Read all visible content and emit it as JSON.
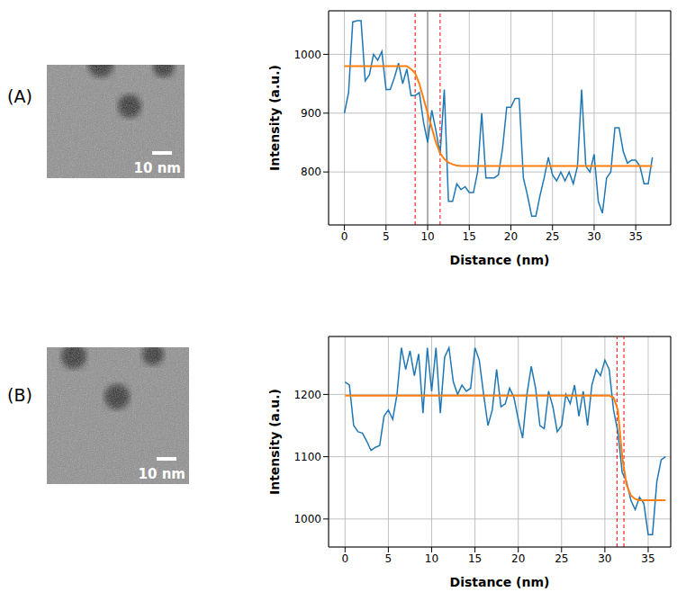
{
  "chart_data": [
    {
      "type": "line",
      "label": "(A)",
      "scale_bar": "10 nm",
      "xlabel": "Distance (nm)",
      "ylabel": "Intensity (a.u.)",
      "xlim": [
        -1.9,
        39.2
      ],
      "xticks": [
        0,
        5,
        10,
        15,
        20,
        25,
        30,
        35
      ],
      "ylim": [
        710,
        1074
      ],
      "yticks": [
        800,
        900,
        1000
      ],
      "grid": true,
      "x": [
        0,
        0.5,
        1,
        1.5,
        2,
        2.5,
        3,
        3.5,
        4,
        4.5,
        5,
        5.5,
        6,
        6.5,
        7,
        7.5,
        8,
        8.5,
        9,
        9.5,
        10,
        10.5,
        11,
        11.5,
        12,
        12.5,
        13,
        13.5,
        14,
        14.5,
        15,
        15.5,
        16,
        16.5,
        17,
        17.5,
        18,
        18.5,
        19,
        19.5,
        20,
        20.5,
        21,
        21.5,
        22,
        22.5,
        23,
        23.5,
        24,
        24.5,
        25,
        25.5,
        26,
        26.5,
        27,
        27.5,
        28,
        28.5,
        29,
        29.5,
        30,
        30.5,
        31,
        31.5,
        32,
        32.5,
        33,
        33.5,
        34,
        34.5,
        35,
        35.5,
        36,
        36.5,
        37
      ],
      "series": [
        {
          "color": "#1f77b4",
          "values": [
            900,
            935,
            1055,
            1057,
            1057,
            955,
            965,
            1000,
            990,
            1005,
            940,
            940,
            960,
            985,
            950,
            975,
            930,
            930,
            935,
            885,
            850,
            905,
            870,
            830,
            940,
            750,
            750,
            780,
            770,
            775,
            765,
            765,
            800,
            900,
            790,
            790,
            790,
            795,
            840,
            910,
            910,
            925,
            925,
            790,
            760,
            725,
            725,
            760,
            790,
            825,
            795,
            785,
            800,
            785,
            800,
            780,
            810,
            940,
            810,
            800,
            830,
            750,
            730,
            790,
            800,
            875,
            875,
            835,
            815,
            820,
            820,
            810,
            780,
            780,
            825
          ]
        },
        {
          "color": "#ff7f0e",
          "values": [
            980,
            980,
            980,
            980,
            980,
            980,
            980,
            980,
            980,
            980,
            980,
            980,
            980,
            980,
            980,
            980,
            975,
            968,
            950,
            925,
            900,
            875,
            850,
            832,
            822,
            816,
            813,
            811,
            810,
            810,
            810,
            810,
            810,
            810,
            810,
            810,
            810,
            810,
            810,
            810,
            810,
            810,
            810,
            810,
            810,
            810,
            810,
            810,
            810,
            810,
            810,
            810,
            810,
            810,
            810,
            810,
            810,
            810,
            810,
            810,
            810,
            810,
            810,
            810,
            810,
            810,
            810,
            810,
            810,
            810,
            810,
            810,
            810,
            810,
            810
          ]
        }
      ],
      "vlines": [
        {
          "x": 8.5,
          "color": "red",
          "line_style": "dashed"
        },
        {
          "x": 10.0,
          "color": "#808080",
          "line_style": "solid"
        },
        {
          "x": 11.5,
          "color": "red",
          "line_style": "dashed"
        }
      ]
    },
    {
      "type": "line",
      "label": "(B)",
      "scale_bar": "10 nm",
      "xlabel": "Distance (nm)",
      "ylabel": "Intensity (a.u.)",
      "xlim": [
        -1.9,
        37.6
      ],
      "xticks": [
        0,
        5,
        10,
        15,
        20,
        25,
        30,
        35
      ],
      "ylim": [
        955,
        1293
      ],
      "yticks": [
        1000,
        1100,
        1200
      ],
      "grid": true,
      "x": [
        0,
        0.5,
        1,
        1.5,
        2,
        2.5,
        3,
        3.5,
        4,
        4.5,
        5,
        5.5,
        6,
        6.5,
        7,
        7.5,
        8,
        8.5,
        9,
        9.5,
        10,
        10.5,
        11,
        11.5,
        12,
        12.5,
        13,
        13.5,
        14,
        14.5,
        15,
        15.5,
        16,
        16.5,
        17,
        17.5,
        18,
        18.5,
        19,
        19.5,
        20,
        20.5,
        21,
        21.5,
        22,
        22.5,
        23,
        23.5,
        24,
        24.5,
        25,
        25.5,
        26,
        26.5,
        27,
        27.5,
        28,
        28.5,
        29,
        29.5,
        30,
        30.5,
        31,
        31.5,
        32,
        32.5,
        33,
        33.5,
        34,
        34.5,
        35,
        35.5,
        36,
        36.5,
        37
      ],
      "series": [
        {
          "color": "#1f77b4",
          "values": [
            1220,
            1215,
            1150,
            1140,
            1138,
            1125,
            1110,
            1115,
            1118,
            1165,
            1175,
            1160,
            1200,
            1275,
            1240,
            1270,
            1230,
            1265,
            1170,
            1275,
            1205,
            1275,
            1170,
            1260,
            1275,
            1220,
            1200,
            1215,
            1205,
            1210,
            1275,
            1255,
            1200,
            1150,
            1175,
            1240,
            1180,
            1185,
            1210,
            1195,
            1160,
            1130,
            1200,
            1245,
            1210,
            1150,
            1145,
            1205,
            1180,
            1140,
            1150,
            1200,
            1185,
            1215,
            1165,
            1205,
            1150,
            1215,
            1240,
            1230,
            1255,
            1240,
            1175,
            1140,
            1075,
            1060,
            1030,
            1015,
            1035,
            1025,
            975,
            975,
            1060,
            1095,
            1100
          ]
        },
        {
          "color": "#ff7f0e",
          "values": [
            1198,
            1198,
            1198,
            1198,
            1198,
            1198,
            1198,
            1198,
            1198,
            1198,
            1198,
            1198,
            1198,
            1198,
            1198,
            1198,
            1198,
            1198,
            1198,
            1198,
            1198,
            1198,
            1198,
            1198,
            1198,
            1198,
            1198,
            1198,
            1198,
            1198,
            1198,
            1198,
            1198,
            1198,
            1198,
            1198,
            1198,
            1198,
            1198,
            1198,
            1198,
            1198,
            1198,
            1198,
            1198,
            1198,
            1198,
            1198,
            1198,
            1198,
            1198,
            1198,
            1198,
            1198,
            1198,
            1198,
            1198,
            1198,
            1198,
            1198,
            1198,
            1198,
            1195,
            1175,
            1100,
            1055,
            1038,
            1032,
            1030,
            1030,
            1030,
            1030,
            1030,
            1030,
            1030
          ]
        }
      ],
      "vlines": [
        {
          "x": 31.4,
          "color": "red",
          "line_style": "dashed"
        },
        {
          "x": 32.2,
          "color": "red",
          "line_style": "dashed"
        }
      ]
    }
  ]
}
